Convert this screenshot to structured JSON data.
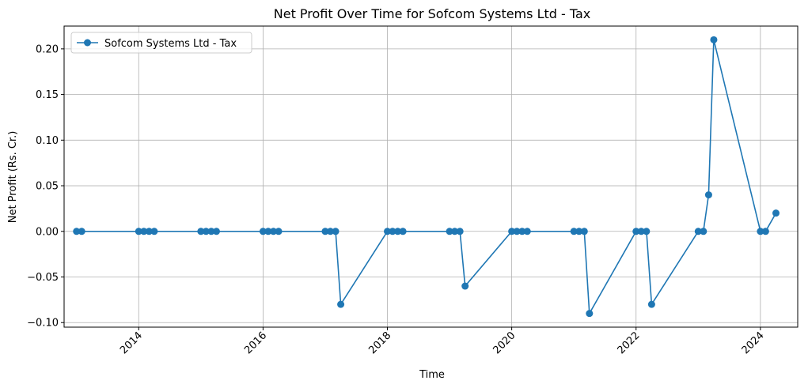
{
  "chart_data": {
    "type": "line",
    "title": "Net Profit Over Time for Sofcom Systems Ltd - Tax",
    "xlabel": "Time",
    "ylabel": "Net Profit (Rs. Cr.)",
    "xlim": [
      2012.8,
      2024.6
    ],
    "ylim": [
      -0.105,
      0.225
    ],
    "x_ticks": [
      "2014",
      "2016",
      "2018",
      "2020",
      "2022",
      "2024"
    ],
    "y_ticks": [
      "−0.10",
      "−0.05",
      "0.00",
      "0.05",
      "0.10",
      "0.15",
      "0.20"
    ],
    "grid": true,
    "legend": "upper-left",
    "series": [
      {
        "name": "Sofcom Systems Ltd - Tax",
        "color": "#1f77b4",
        "x": [
          2013.0,
          2013.083,
          2014.0,
          2014.083,
          2014.167,
          2014.25,
          2015.0,
          2015.083,
          2015.167,
          2015.25,
          2016.0,
          2016.083,
          2016.167,
          2016.25,
          2017.0,
          2017.083,
          2017.167,
          2017.25,
          2018.0,
          2018.083,
          2018.167,
          2018.25,
          2019.0,
          2019.083,
          2019.167,
          2019.25,
          2020.0,
          2020.083,
          2020.167,
          2020.25,
          2021.0,
          2021.083,
          2021.167,
          2021.25,
          2022.0,
          2022.083,
          2022.167,
          2022.25,
          2023.0,
          2023.083,
          2023.167,
          2023.25,
          2024.0,
          2024.083,
          2024.25
        ],
        "y": [
          0,
          0,
          0,
          0,
          0,
          0,
          0,
          0,
          0,
          0,
          0,
          0,
          0,
          0,
          0,
          0,
          0,
          -0.08,
          0,
          0,
          0,
          0,
          0,
          0,
          0,
          -0.06,
          0,
          0,
          0,
          0,
          0,
          0,
          0,
          -0.09,
          0,
          0,
          0,
          -0.08,
          0,
          0,
          0.04,
          0.21,
          0,
          0,
          0.02
        ]
      }
    ]
  }
}
